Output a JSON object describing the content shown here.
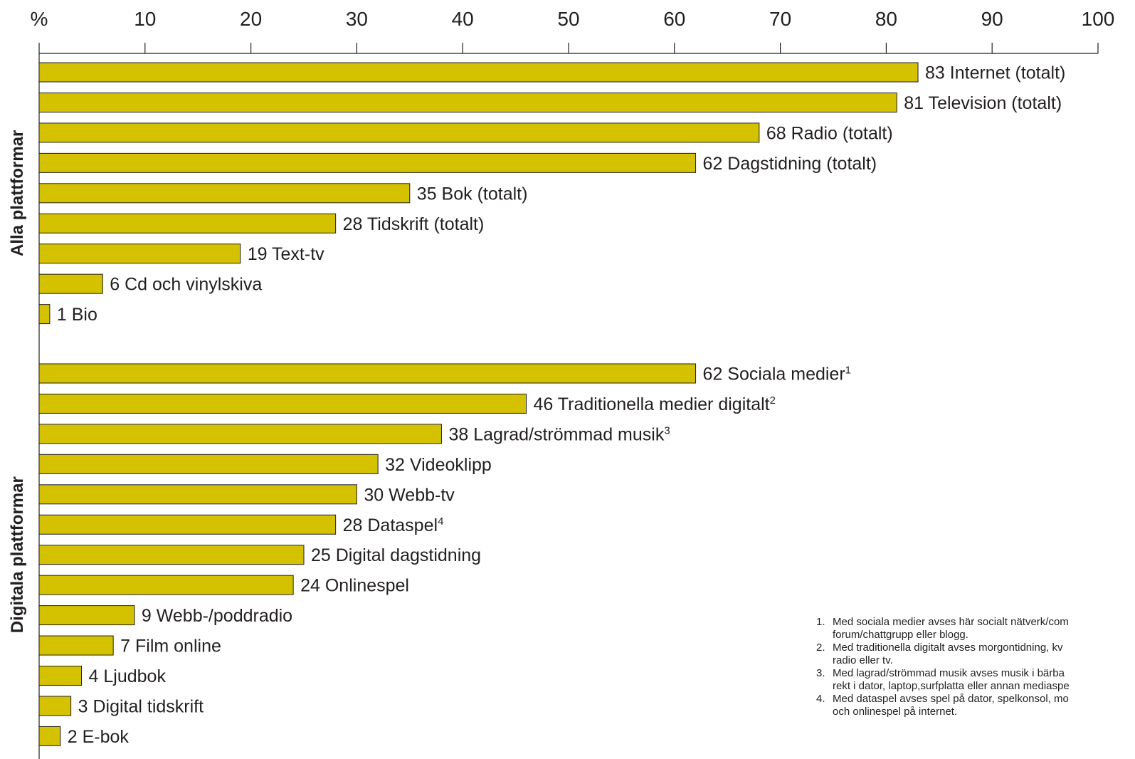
{
  "chart_data": {
    "type": "bar",
    "orientation": "horizontal",
    "axis_unit_label": "%",
    "xlim": [
      0,
      100
    ],
    "xticks": [
      10,
      20,
      30,
      40,
      50,
      60,
      70,
      80,
      90,
      100
    ],
    "bar_color": "#d4c100",
    "groups": [
      {
        "label": "Alla plattformar",
        "bars": [
          {
            "value": 83,
            "label": "Internet (totalt)",
            "sup": ""
          },
          {
            "value": 81,
            "label": "Television (totalt)",
            "sup": ""
          },
          {
            "value": 68,
            "label": "Radio (totalt)",
            "sup": ""
          },
          {
            "value": 62,
            "label": "Dagstidning (totalt)",
            "sup": ""
          },
          {
            "value": 35,
            "label": "Bok (totalt)",
            "sup": ""
          },
          {
            "value": 28,
            "label": "Tidskrift (totalt)",
            "sup": ""
          },
          {
            "value": 19,
            "label": "Text-tv",
            "sup": ""
          },
          {
            "value": 6,
            "label": "Cd och vinylskiva",
            "sup": ""
          },
          {
            "value": 1,
            "label": "Bio",
            "sup": ""
          }
        ]
      },
      {
        "label": "Digitala plattformar",
        "bars": [
          {
            "value": 62,
            "label": "Sociala medier",
            "sup": "1"
          },
          {
            "value": 46,
            "label": "Traditionella medier digitalt",
            "sup": "2"
          },
          {
            "value": 38,
            "label": "Lagrad/strömmad musik",
            "sup": "3"
          },
          {
            "value": 32,
            "label": "Videoklipp",
            "sup": ""
          },
          {
            "value": 30,
            "label": "Webb-tv",
            "sup": ""
          },
          {
            "value": 28,
            "label": "Dataspel",
            "sup": "4"
          },
          {
            "value": 25,
            "label": "Digital dagstidning",
            "sup": ""
          },
          {
            "value": 24,
            "label": "Onlinespel",
            "sup": ""
          },
          {
            "value": 9,
            "label": "Webb-/poddradio",
            "sup": ""
          },
          {
            "value": 7,
            "label": "Film online",
            "sup": ""
          },
          {
            "value": 4,
            "label": "Ljudbok",
            "sup": ""
          },
          {
            "value": 3,
            "label": "Digital tidskrift",
            "sup": ""
          },
          {
            "value": 2,
            "label": "E-bok",
            "sup": ""
          }
        ]
      }
    ],
    "footnotes": [
      {
        "num": "1.",
        "lines": [
          "Med sociala medier avses här socialt nätverk/com",
          "forum/chattgrupp eller blogg."
        ]
      },
      {
        "num": "2.",
        "lines": [
          "Med traditionella digitalt avses morgontidning, kv",
          "radio eller tv."
        ]
      },
      {
        "num": "3.",
        "lines": [
          "Med lagrad/strömmad musik avses musik i bärba",
          "rekt i dator, laptop,surfplatta eller annan mediaspe"
        ]
      },
      {
        "num": "4.",
        "lines": [
          "Med dataspel avses spel på dator, spelkonsol, mo",
          "och onlinespel på internet."
        ]
      }
    ]
  }
}
